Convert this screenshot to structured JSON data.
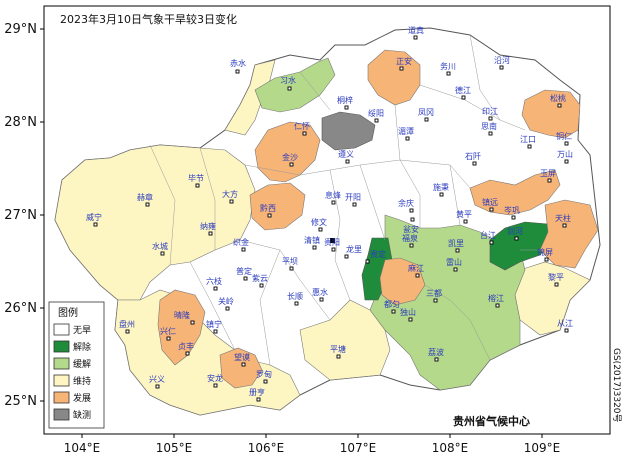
{
  "map": {
    "title": "2023年3月10日气象干旱较3日变化",
    "lat_labels": [
      "29°N",
      "28°N",
      "27°N",
      "26°N",
      "25°N"
    ],
    "lon_labels": [
      "104°E",
      "105°E",
      "106°E",
      "107°E",
      "108°E",
      "109°E"
    ],
    "credit": "贵州省气候中心",
    "map_code": "GS(2017)3320号",
    "legend": {
      "title": "图例",
      "items": [
        {
          "label": "无旱",
          "color": "#ffffff"
        },
        {
          "label": "解除",
          "color": "#1e8c3a"
        },
        {
          "label": "缓解",
          "color": "#b5d98a"
        },
        {
          "label": "维持",
          "color": "#fdf6c3"
        },
        {
          "label": "发展",
          "color": "#f7b477"
        },
        {
          "label": "缺测",
          "color": "#888888"
        }
      ]
    },
    "cities": [
      "道真",
      "正安",
      "务川",
      "沿河",
      "赤水",
      "习水",
      "桐梓",
      "绥阳",
      "凤冈",
      "德江",
      "印江",
      "松桃",
      "仁怀",
      "湄潭",
      "思南",
      "江口",
      "铜仁",
      "万山",
      "金沙",
      "遵义",
      "石阡",
      "玉屏",
      "毕节",
      "大方",
      "黔西",
      "息烽",
      "开阳",
      "余庆",
      "施秉",
      "镇远",
      "岑巩",
      "赫章",
      "纳雍",
      "修文",
      "瓮安",
      "黄平",
      "天柱",
      "织金",
      "清镇",
      "贵阳",
      "龙里",
      "福泉",
      "凯里",
      "台江",
      "剑河",
      "锦屏",
      "威宁",
      "水城",
      "六枝",
      "普定",
      "平坝",
      "贵定",
      "麻江",
      "雷山",
      "榕江",
      "黎平",
      "盘州",
      "晴隆",
      "关岭",
      "镇宁",
      "紫云",
      "长顺",
      "惠水",
      "都匀",
      "三都",
      "从江",
      "兴仁",
      "贞丰",
      "望谟",
      "罗甸",
      "平塘",
      "独山",
      "荔波",
      "兴义",
      "安龙",
      "册亨"
    ]
  }
}
